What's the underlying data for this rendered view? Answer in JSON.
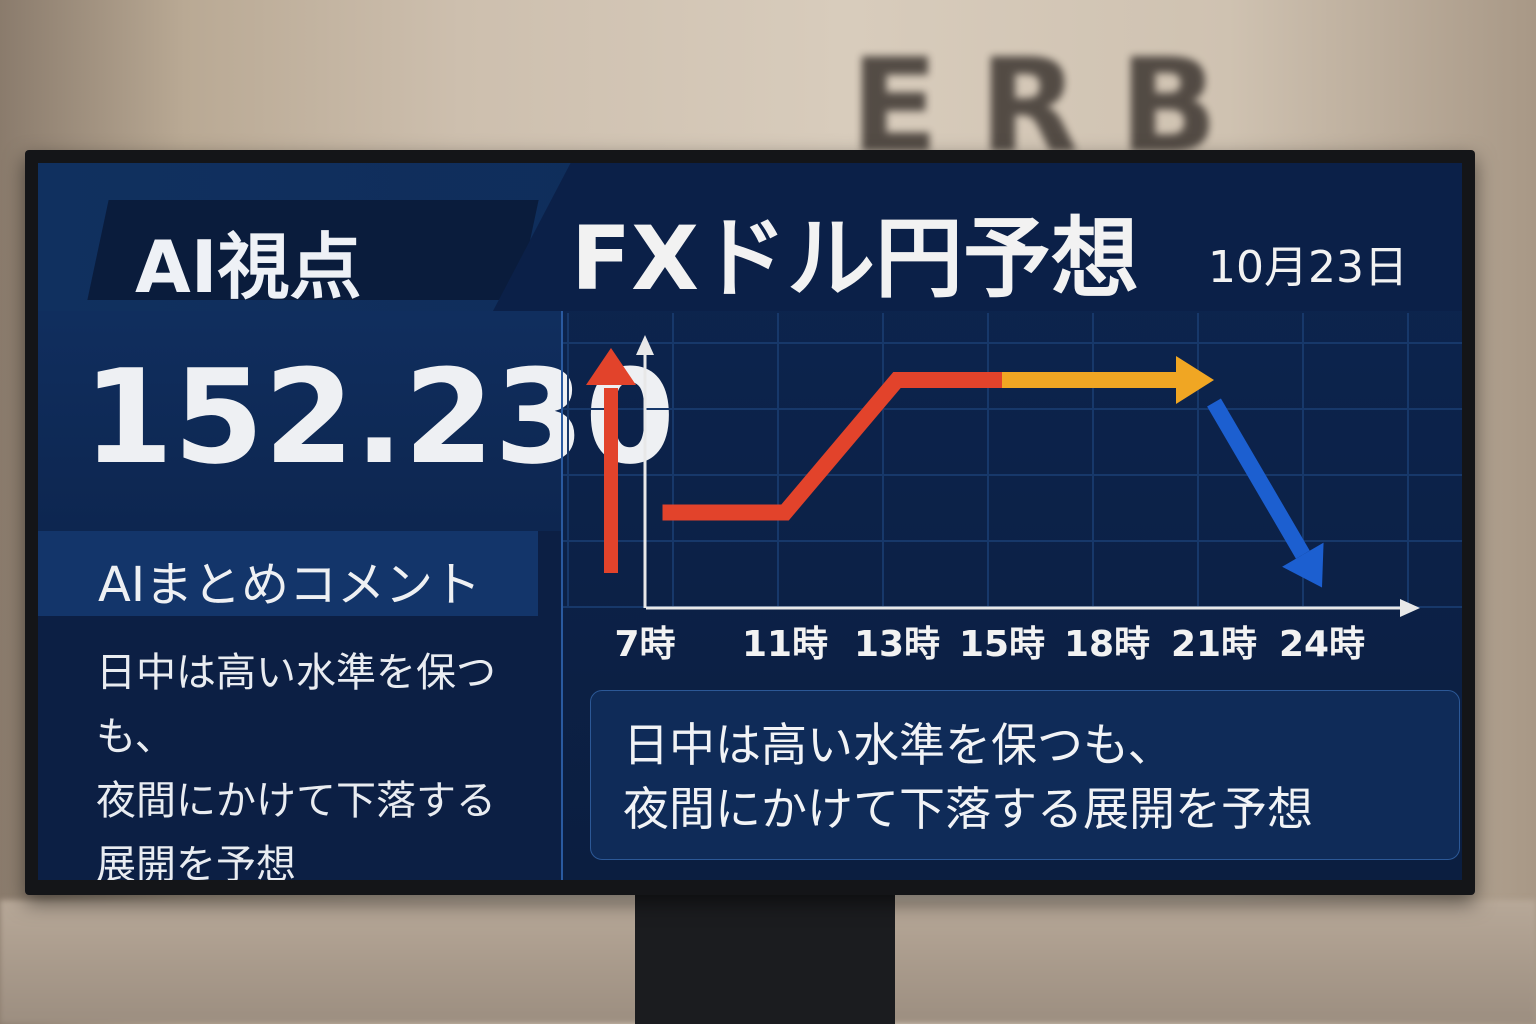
{
  "background": {
    "wall_sign": "ERB"
  },
  "header": {
    "tag": "AI視点",
    "title": "FXドル円予想",
    "date": "10月23日"
  },
  "left_panel": {
    "price": "152.230",
    "comment_heading": "AIまとめコメント",
    "comment_lines": [
      "日中は高い水準を保つも、",
      "夜間にかけて下落する",
      "展開を予想"
    ]
  },
  "summary": {
    "lines": [
      "日中は高い水準を保つも、",
      "夜間にかけて下落する展開を予想"
    ]
  },
  "colors": {
    "up": "#e2432b",
    "flat": "#f0a623",
    "down": "#1c5fd0",
    "background": "#0b1e40"
  },
  "chart_data": {
    "type": "line",
    "title": "",
    "xlabel": "",
    "ylabel": "",
    "x_ticks": [
      "7時",
      "11時",
      "13時",
      "15時",
      "18時",
      "21時",
      "24時"
    ],
    "x_hours": [
      7,
      11,
      13,
      15,
      18,
      21,
      24
    ],
    "y_axis": "unlabeled (relative level)",
    "grid": true,
    "series": [
      {
        "color": "#e2432b",
        "points": [
          [
            7.5,
            35
          ],
          [
            11,
            35
          ],
          [
            13,
            88
          ],
          [
            15,
            88
          ]
        ]
      },
      {
        "color": "#f0a623",
        "points": [
          [
            15,
            88
          ],
          [
            21,
            88
          ]
        ],
        "arrow": true
      },
      {
        "color": "#1c5fd0",
        "points": [
          [
            21,
            79
          ],
          [
            24,
            5
          ]
        ],
        "arrow": true
      }
    ],
    "trend_indicator": {
      "direction": "up",
      "color": "#e2432b"
    }
  }
}
